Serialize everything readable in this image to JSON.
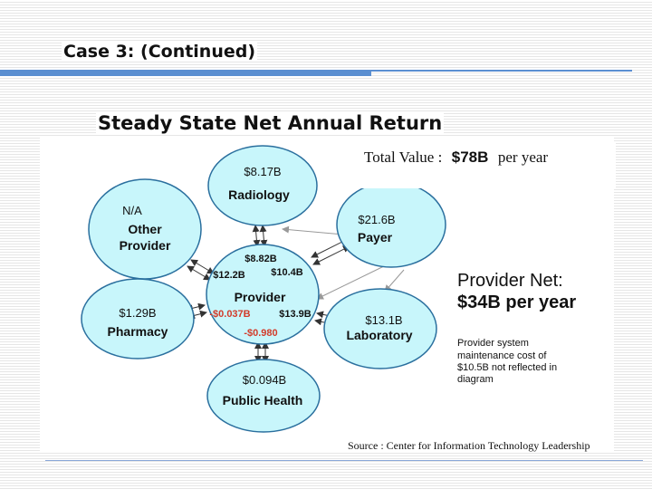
{
  "slide": {
    "title": "Case 3: (Continued)",
    "subtitle": "Steady State Net Annual Return"
  },
  "total": {
    "label": "Total Value :",
    "amount": "$78B",
    "suffix": "per year"
  },
  "nodes": {
    "radiology": {
      "amount": "$8.17B",
      "name": "Radiology"
    },
    "other_provider": {
      "amount": "N/A",
      "name_line1": "Other",
      "name_line2": "Provider"
    },
    "payer": {
      "amount": "$21.6B",
      "name": "Payer"
    },
    "pharmacy": {
      "amount": "$1.29B",
      "name": "Pharmacy"
    },
    "laboratory": {
      "amount": "$13.1B",
      "name": "Laboratory"
    },
    "public_health": {
      "amount": "$0.094B",
      "name": "Public Health"
    },
    "provider": {
      "name": "Provider",
      "from_radiology": "$8.82B",
      "from_other_provider": "$12.2B",
      "from_payer": "$10.4B",
      "from_pharmacy": "-$0.037B",
      "from_laboratory": "$13.9B",
      "from_public_health": "-$0.980"
    }
  },
  "provider_net": {
    "line1": "Provider Net:",
    "line2": "$34B per year",
    "note_line1": "Provider system",
    "note_line2": "maintenance cost of",
    "note_line3": "$10.5B not reflected in",
    "note_line4": "diagram"
  },
  "source": "Source : Center for Information Technology Leadership",
  "colors": {
    "node_fill": "#c8f6fb",
    "node_stroke": "#2a6f9e",
    "negative": "#d23b2a",
    "accent": "#5b8fd1"
  }
}
